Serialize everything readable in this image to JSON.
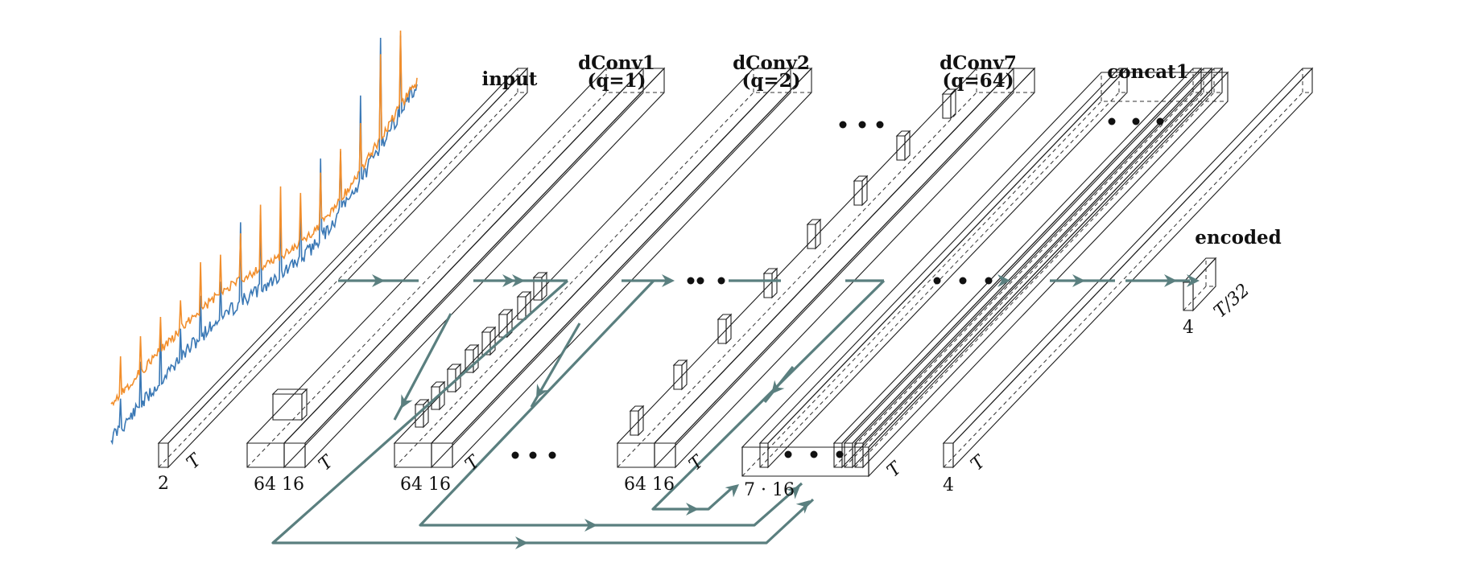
{
  "labels": {
    "input": "input",
    "dconv1_name": "dConv1",
    "dconv1_q": "(q=1)",
    "dconv2_name": "dConv2",
    "dconv2_q": "(q=2)",
    "dconv7_name": "dConv7",
    "dconv7_q": "(q=64)",
    "concat": "concat1",
    "encoded": "encoded"
  },
  "dims": {
    "input_channels": "2",
    "time": "T",
    "conv_channels_a": "64",
    "conv_channels_b": "16",
    "concat_channels": "7 · 16",
    "final_channels": "4",
    "encoded_channels": "4",
    "encoded_length": "T/32"
  },
  "colors": {
    "input_block": "#c9a8cc",
    "conv_block": "#f7d9a8",
    "conv_block_dark": "#f0bf7c",
    "kernel": "#bfe3bf",
    "concat_shell": "#c9c9c9",
    "concat_inner": "#7f93bf",
    "encoded_block": "#e8a4a8",
    "flow_arrows": "#5a7f7f",
    "signal_blue": "#3a78b5",
    "signal_orange": "#f28e2b"
  }
}
